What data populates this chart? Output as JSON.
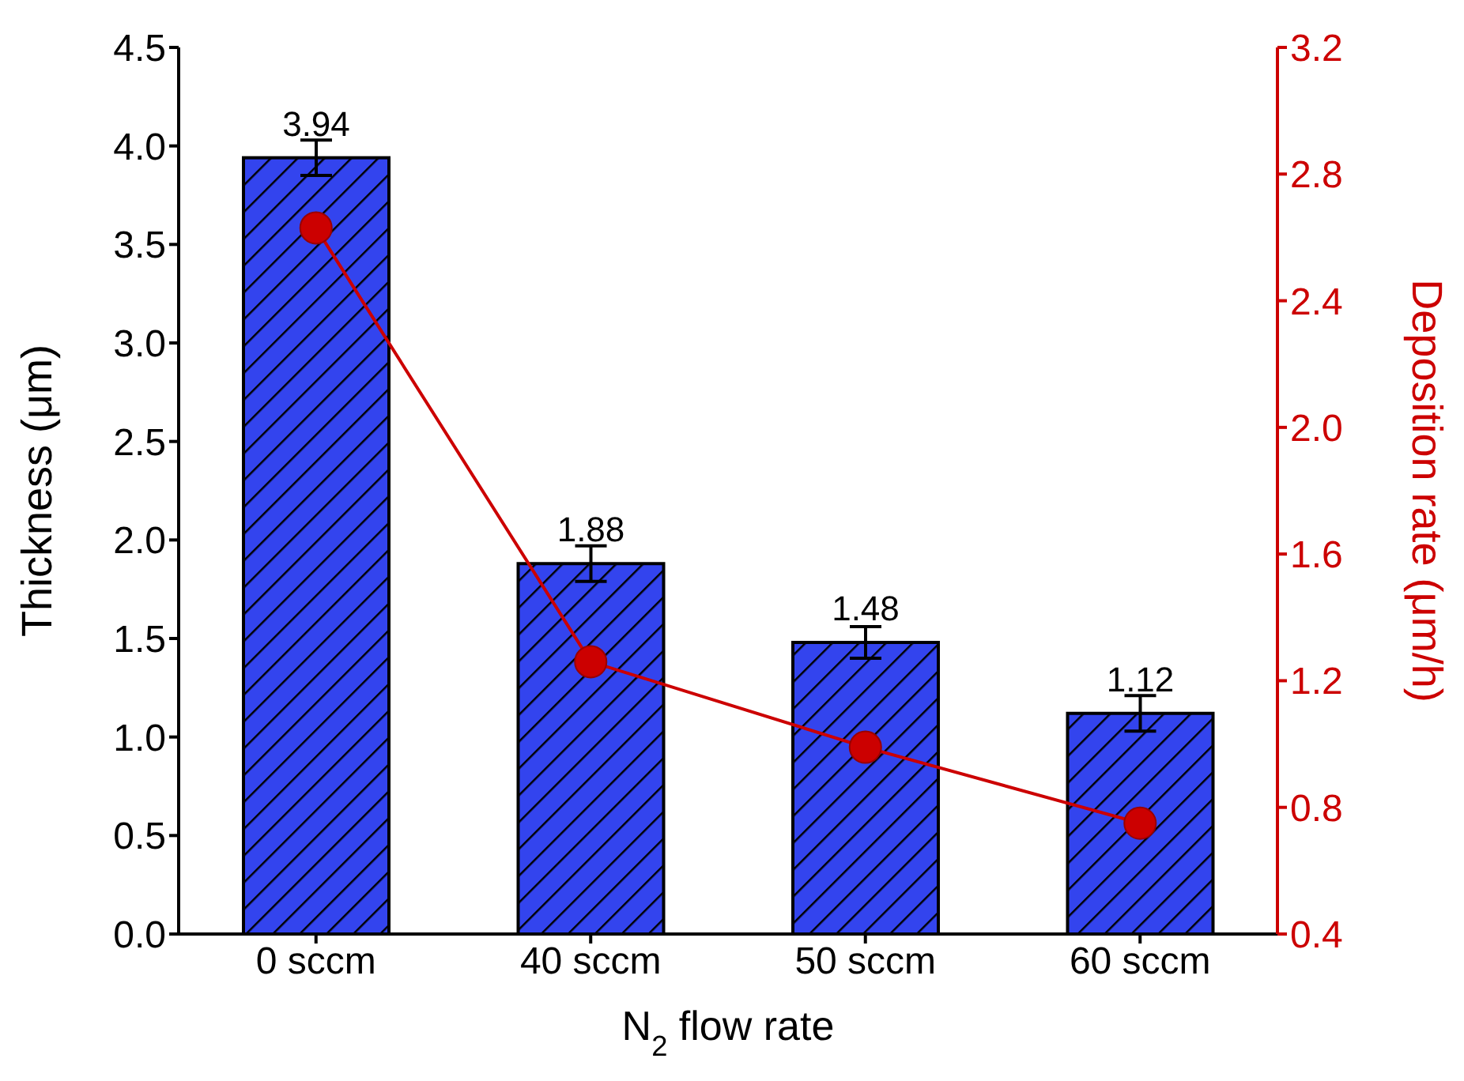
{
  "chart_data": {
    "type": "bar",
    "xlabel": "N$_{2}$ flow rate",
    "ylabel": "Thickness (μm)",
    "y2label": "Deposition rate (μm/h)",
    "categories": [
      "0 sccm",
      "40 sccm",
      "50 sccm",
      "60 sccm"
    ],
    "series": [
      {
        "color": "#3344ee",
        "values": [
          3.94,
          1.88,
          1.48,
          1.12
        ],
        "errors": [
          0.09,
          0.09,
          0.08,
          0.09
        ],
        "value_labels": [
          "3.94",
          "1.88",
          "1.48",
          "1.12"
        ]
      },
      {
        "type": "line",
        "axis": "y2",
        "color": "#cc0000",
        "values": [
          2.63,
          1.26,
          0.99,
          0.75
        ],
        "marker": "circle",
        "line_style": "solid"
      }
    ],
    "ylim": [
      0,
      4.5
    ],
    "yticks": [
      {
        "value": 0,
        "label": "0.0"
      },
      0.5,
      {
        "value": 1,
        "label": "1.0"
      },
      1.5,
      {
        "value": 2,
        "label": "2.0"
      },
      2.5,
      {
        "value": 3,
        "label": "3.0"
      },
      3.5,
      {
        "value": 4,
        "label": "4.0"
      },
      4.5
    ],
    "y2lim": [
      0.4,
      3.2
    ],
    "y2ticks": [
      0.4,
      0.8,
      1.2,
      1.6,
      {
        "value": 2,
        "label": "2.0"
      },
      2.4,
      2.8,
      3.2
    ]
  }
}
